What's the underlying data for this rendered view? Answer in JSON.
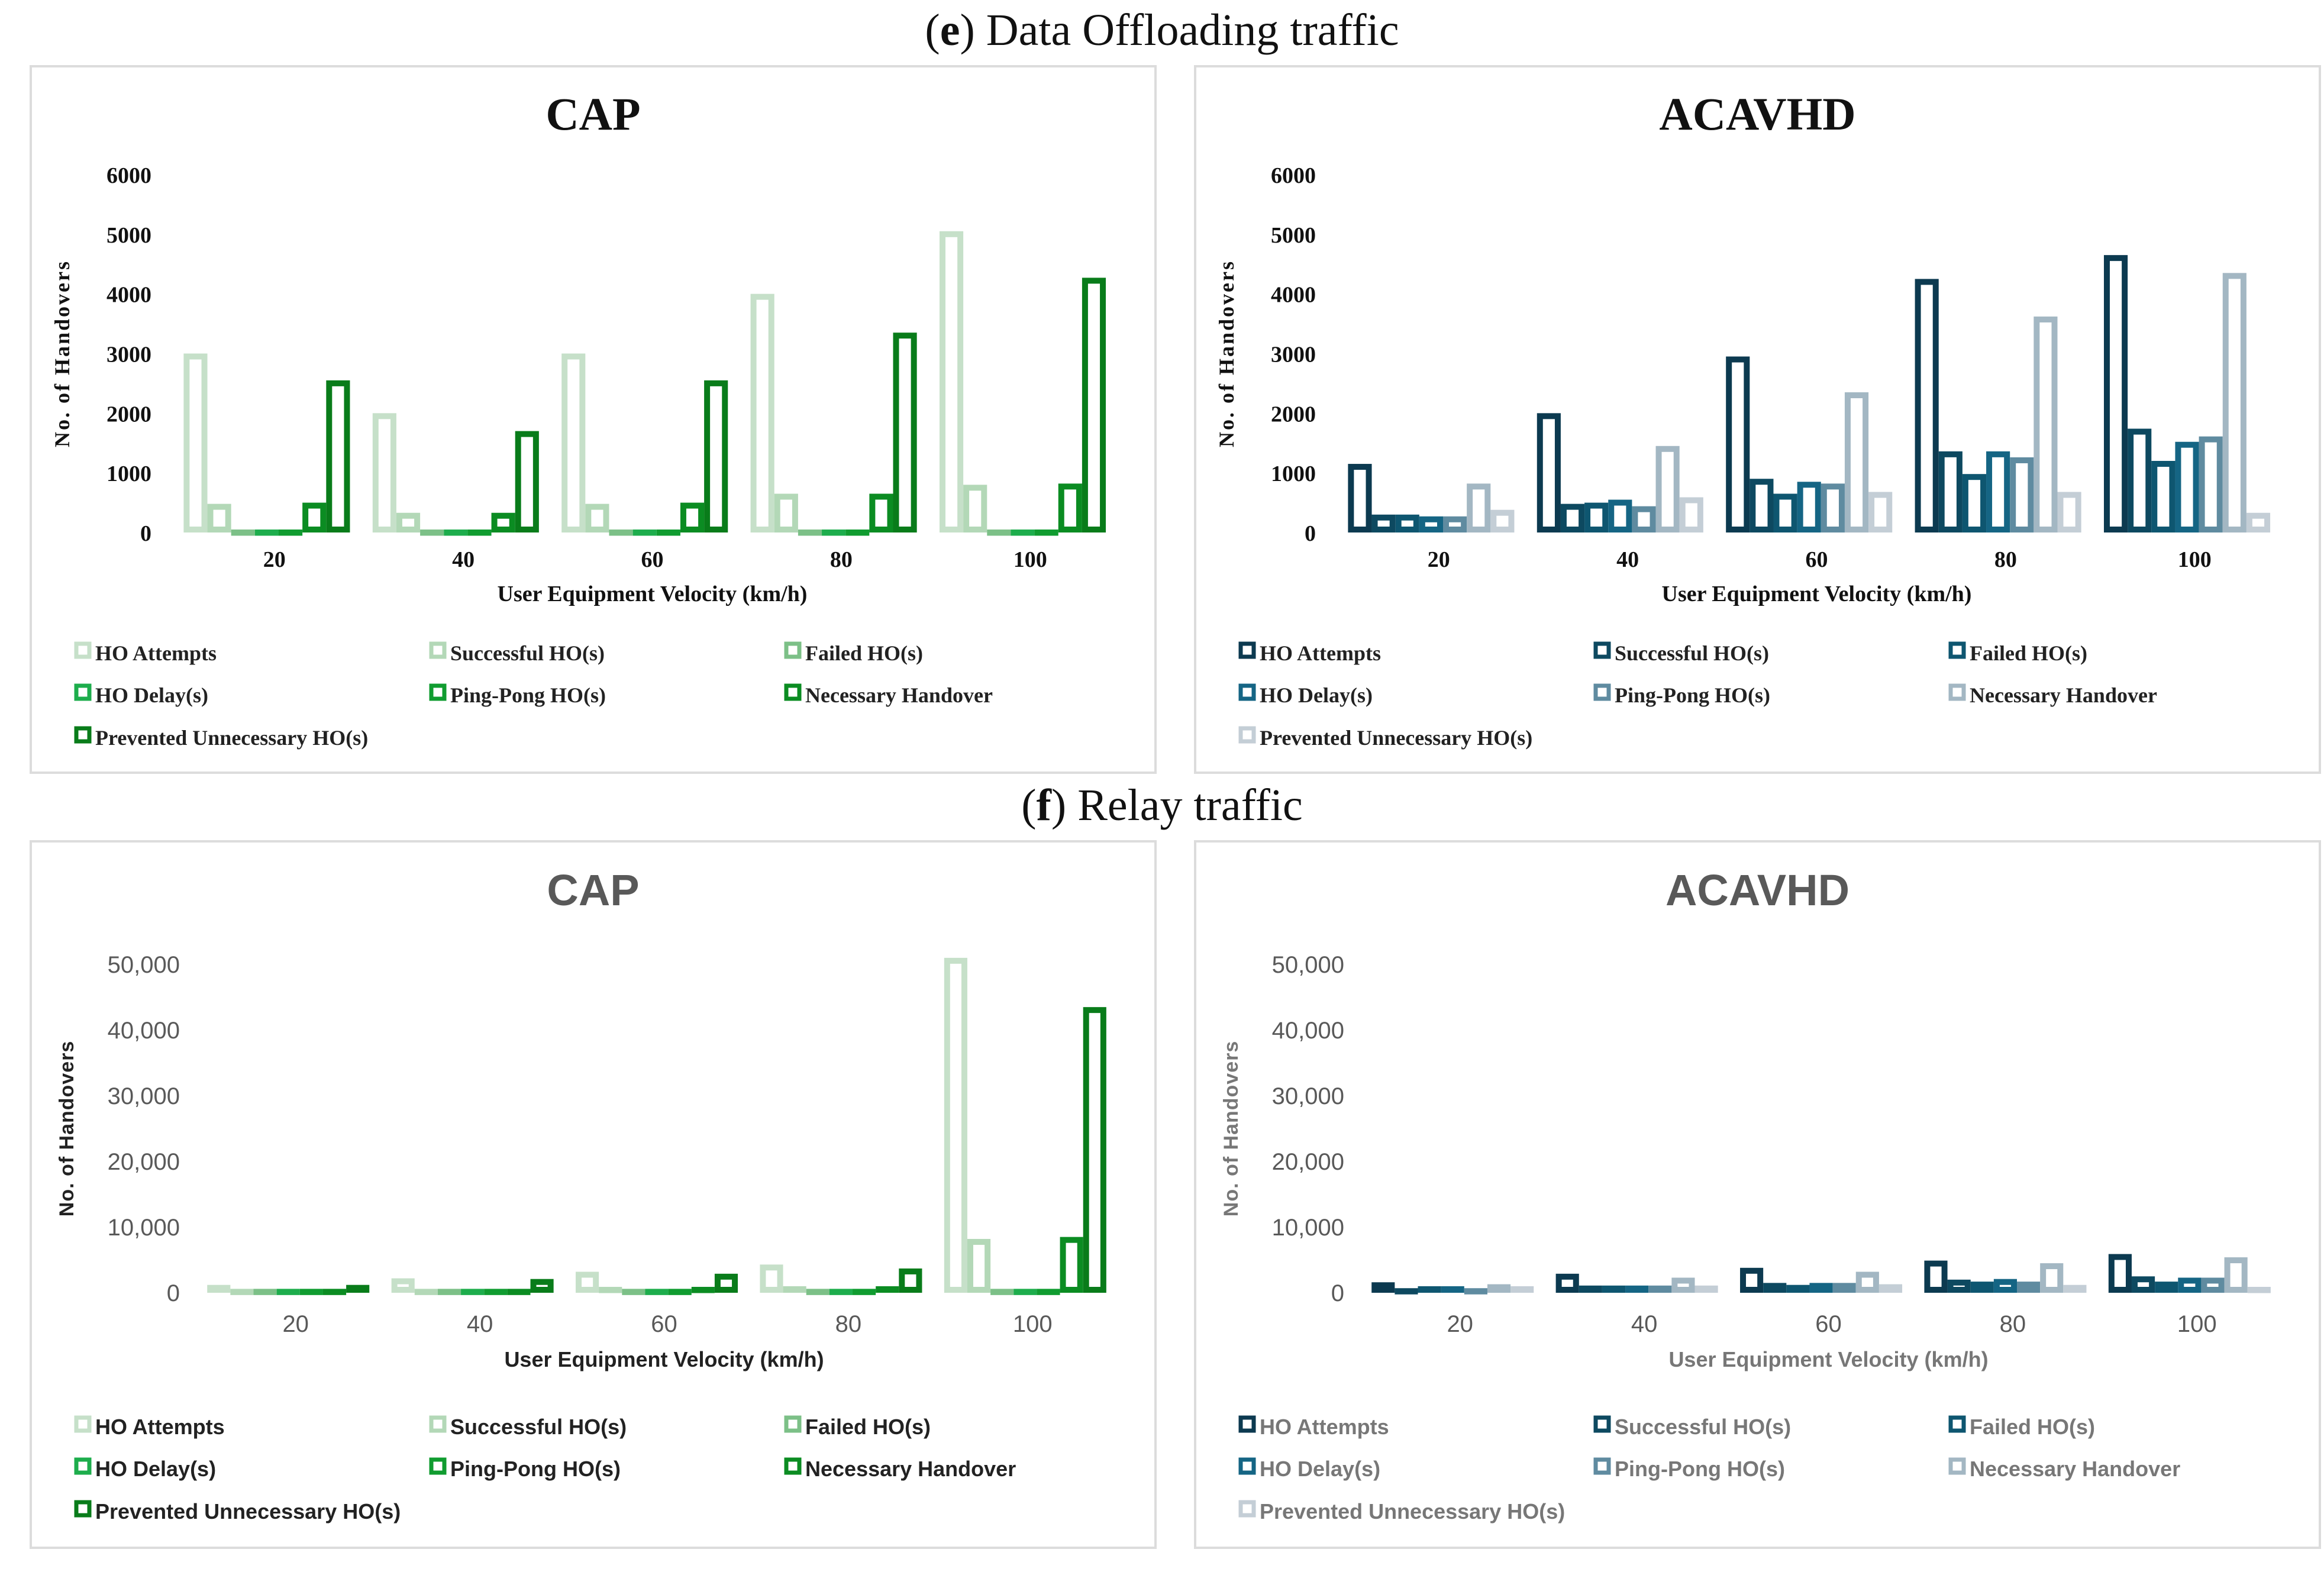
{
  "sections": {
    "e": {
      "letter": "e",
      "title": "Data Offloading traffic"
    },
    "f": {
      "letter": "f",
      "title": "Relay traffic"
    }
  },
  "chart_data": [
    {
      "id": "e-cap",
      "type": "bar",
      "title": "CAP",
      "xlabel": "User Equipment Velocity (km/h)",
      "ylabel": "No. of Handovers",
      "categories": [
        "20",
        "40",
        "60",
        "80",
        "100"
      ],
      "ylim": [
        0,
        6000
      ],
      "yticks": [
        0,
        1000,
        2000,
        3000,
        4000,
        5000,
        6000
      ],
      "ytick_labels": [
        "0",
        "1000",
        "2000",
        "3000",
        "4000",
        "5000",
        "6000"
      ],
      "legend_position": "bottom",
      "grid": false,
      "series": [
        {
          "name": "HO Attempts",
          "color": "#c6e0c9",
          "values": [
            3000,
            2000,
            3000,
            4000,
            5050
          ]
        },
        {
          "name": "Successful HO(s)",
          "color": "#b3d8b7",
          "values": [
            480,
            330,
            480,
            650,
            800
          ]
        },
        {
          "name": "Failed HO(s)",
          "color": "#7cc087",
          "values": [
            50,
            50,
            50,
            50,
            50
          ]
        },
        {
          "name": "HO Delay(s)",
          "color": "#1dad4c",
          "values": [
            50,
            50,
            50,
            50,
            50
          ]
        },
        {
          "name": "Ping-Pong HO(s)",
          "color": "#109c30",
          "values": [
            50,
            50,
            50,
            50,
            50
          ]
        },
        {
          "name": "Necessary Handover",
          "color": "#0b8c22",
          "values": [
            500,
            330,
            500,
            650,
            820
          ]
        },
        {
          "name": "Prevented Unnecessary HO(s)",
          "color": "#097c1a",
          "values": [
            2550,
            1700,
            2550,
            3350,
            4270
          ]
        }
      ]
    },
    {
      "id": "e-acavhd",
      "type": "bar",
      "title": "ACAVHD",
      "xlabel": "User Equipment Velocity (km/h)",
      "ylabel": "No. of Handovers",
      "categories": [
        "20",
        "40",
        "60",
        "80",
        "100"
      ],
      "ylim": [
        0,
        6000
      ],
      "yticks": [
        0,
        1000,
        2000,
        3000,
        4000,
        5000,
        6000
      ],
      "ytick_labels": [
        "0",
        "1000",
        "2000",
        "3000",
        "4000",
        "5000",
        "6000"
      ],
      "legend_position": "bottom",
      "grid": false,
      "series": [
        {
          "name": "HO Attempts",
          "color": "#0c3a50",
          "values": [
            1150,
            2000,
            2950,
            4250,
            4650
          ]
        },
        {
          "name": "Successful HO(s)",
          "color": "#0d4960",
          "values": [
            300,
            480,
            900,
            1360,
            1740
          ]
        },
        {
          "name": "Failed HO(s)",
          "color": "#0e5670",
          "values": [
            300,
            500,
            650,
            980,
            1200
          ]
        },
        {
          "name": "HO Delay(s)",
          "color": "#156584",
          "values": [
            270,
            550,
            850,
            1360,
            1520
          ]
        },
        {
          "name": "Ping-Pong HO(s)",
          "color": "#5f8ba0",
          "values": [
            270,
            440,
            820,
            1260,
            1610
          ]
        },
        {
          "name": "Necessary Handover",
          "color": "#a3b7c3",
          "values": [
            820,
            1450,
            2350,
            3620,
            4350
          ]
        },
        {
          "name": "Prevented Unnecessary HO(s)",
          "color": "#c4ced6",
          "values": [
            380,
            590,
            680,
            680,
            330
          ]
        }
      ]
    },
    {
      "id": "f-cap",
      "type": "bar",
      "title": "CAP",
      "xlabel": "User Equipment Velocity (km/h)",
      "ylabel": "No. of Handovers",
      "categories": [
        "20",
        "40",
        "60",
        "80",
        "100"
      ],
      "ylim": [
        0,
        50000
      ],
      "yticks": [
        0,
        10000,
        20000,
        30000,
        40000,
        50000
      ],
      "ytick_labels": [
        "0",
        "10,000",
        "20,000",
        "30,000",
        "40,000",
        "50,000"
      ],
      "legend_position": "bottom",
      "grid": false,
      "series": [
        {
          "name": "HO Attempts",
          "color": "#c6e0c9",
          "values": [
            1200,
            2200,
            3200,
            4300,
            51000
          ]
        },
        {
          "name": "Successful HO(s)",
          "color": "#b3d8b7",
          "values": [
            600,
            600,
            900,
            1000,
            8200
          ]
        },
        {
          "name": "Failed HO(s)",
          "color": "#7cc087",
          "values": [
            600,
            600,
            600,
            600,
            600
          ]
        },
        {
          "name": "HO Delay(s)",
          "color": "#1dad4c",
          "values": [
            600,
            600,
            600,
            600,
            600
          ]
        },
        {
          "name": "Ping-Pong HO(s)",
          "color": "#109c30",
          "values": [
            600,
            600,
            600,
            600,
            600
          ]
        },
        {
          "name": "Necessary Handover",
          "color": "#0b8c22",
          "values": [
            600,
            600,
            900,
            1000,
            8500
          ]
        },
        {
          "name": "Prevented Unnecessary HO(s)",
          "color": "#097c1a",
          "values": [
            1200,
            2100,
            2900,
            3700,
            43500
          ]
        }
      ]
    },
    {
      "id": "f-acavhd",
      "type": "bar",
      "title": "ACAVHD",
      "xlabel": "User Equipment Velocity (km/h)",
      "ylabel": "No. of Handovers",
      "categories": [
        "20",
        "40",
        "60",
        "80",
        "100"
      ],
      "ylim": [
        0,
        50000
      ],
      "yticks": [
        0,
        10000,
        20000,
        30000,
        40000,
        50000
      ],
      "ytick_labels": [
        "0",
        "10,000",
        "20,000",
        "30,000",
        "40,000",
        "50,000"
      ],
      "legend_position": "bottom",
      "grid": false,
      "series": [
        {
          "name": "HO Attempts",
          "color": "#0c3a50",
          "values": [
            1600,
            2900,
            3800,
            4900,
            5900
          ]
        },
        {
          "name": "Successful HO(s)",
          "color": "#0d4960",
          "values": [
            700,
            1100,
            1500,
            2000,
            2500
          ]
        },
        {
          "name": "Failed HO(s)",
          "color": "#0e5670",
          "values": [
            1000,
            1100,
            1200,
            1700,
            1700
          ]
        },
        {
          "name": "HO Delay(s)",
          "color": "#156584",
          "values": [
            1000,
            1100,
            1500,
            2100,
            2300
          ]
        },
        {
          "name": "Ping-Pong HO(s)",
          "color": "#5f8ba0",
          "values": [
            700,
            1100,
            1500,
            1700,
            2300
          ]
        },
        {
          "name": "Necessary Handover",
          "color": "#a3b7c3",
          "values": [
            1300,
            2300,
            3200,
            4500,
            5400
          ]
        },
        {
          "name": "Prevented Unnecessary HO(s)",
          "color": "#c4ced6",
          "values": [
            1000,
            1100,
            1300,
            1200,
            900
          ]
        }
      ]
    }
  ]
}
